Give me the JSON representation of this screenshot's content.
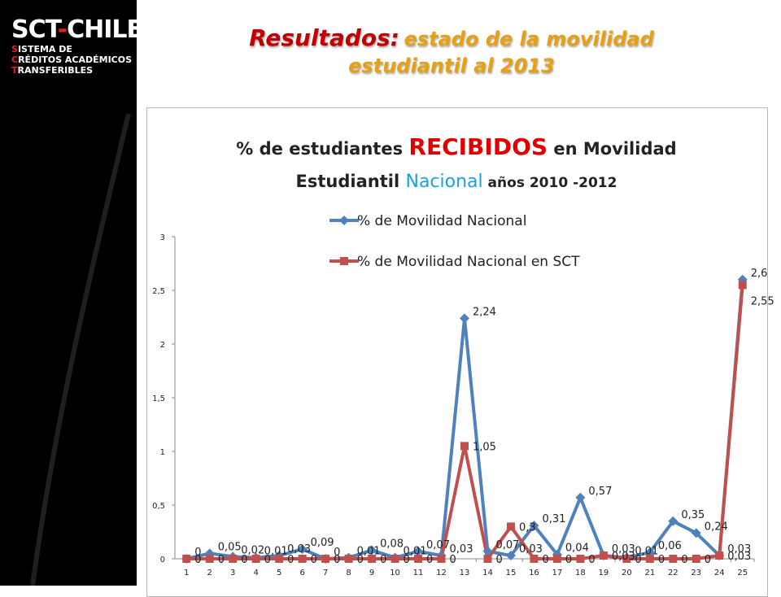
{
  "header": {
    "title_main": "Resultados:",
    "title_sub1": "estado de la movilidad",
    "title_sub2": "estudiantil al 2013"
  },
  "logo": {
    "main": "SCT",
    "dash": "-",
    "main2": "CHILE",
    "lines": [
      {
        "initial": "S",
        "rest": "ISTEMA DE"
      },
      {
        "initial": "C",
        "rest": "RÉDITOS ACADÉMICOS"
      },
      {
        "initial": "T",
        "rest": "RANSFERIBLES"
      }
    ]
  },
  "chart_title": {
    "part1": "% de estudiantes ",
    "part2": "RECIBIDOS",
    "part3": " en Movilidad",
    "part4": "Estudiantil ",
    "part5": "Nacional",
    "part6": " años 2010 -2012"
  },
  "colors": {
    "series1": "#4f81bd",
    "series2": "#c0504d"
  },
  "chart_data": {
    "type": "line",
    "x": [
      1,
      2,
      3,
      4,
      5,
      6,
      7,
      8,
      9,
      10,
      11,
      12,
      13,
      14,
      15,
      16,
      17,
      18,
      19,
      20,
      21,
      22,
      23,
      24,
      25
    ],
    "ylim": [
      0,
      3
    ],
    "yticks": [
      "0",
      "0,5",
      "1",
      "1,5",
      "2",
      "2,5",
      "3"
    ],
    "ytick_values": [
      0,
      0.5,
      1,
      1.5,
      2,
      2.5,
      3
    ],
    "grid": false,
    "legend_position": "top",
    "series": [
      {
        "name": "% de Movilidad Nacional",
        "values": [
          0,
          0.05,
          0.02,
          0.01,
          0.03,
          0.09,
          0,
          0.01,
          0.08,
          0.01,
          0.07,
          0.03,
          2.24,
          0.07,
          0.03,
          0.31,
          0.04,
          0.57,
          0.03,
          0.01,
          0.06,
          0.35,
          0.24,
          0.03,
          2.6
        ],
        "labels": [
          "0",
          "0,05",
          "0,02",
          "0,01",
          "0,03",
          "0,09",
          "0",
          "0,01",
          "0,08",
          "0,01",
          "0,07",
          "0,03",
          "2,24",
          "0,07",
          "0,03",
          "0,31",
          "0,04",
          "0,57",
          "0,03",
          "0,01",
          "0,06",
          "0,35",
          "0,24",
          "0,03",
          "2,6"
        ]
      },
      {
        "name": "% de Movilidad Nacional en SCT",
        "values": [
          0,
          0,
          0,
          0,
          0,
          0,
          0,
          0,
          0,
          0,
          0,
          0,
          1.05,
          0,
          0.3,
          0,
          0,
          0,
          0.03,
          0,
          0,
          0,
          0,
          0.03,
          2.55
        ],
        "labels": [
          "0",
          "0",
          "0",
          "0",
          "0",
          "0",
          "0",
          "0",
          "0",
          "0",
          "0",
          "0",
          "1,05",
          "0",
          "0,3",
          "0",
          "0",
          "0",
          "0,03",
          "0",
          "0",
          "0",
          "0",
          "0,03",
          "2,55"
        ]
      }
    ]
  }
}
